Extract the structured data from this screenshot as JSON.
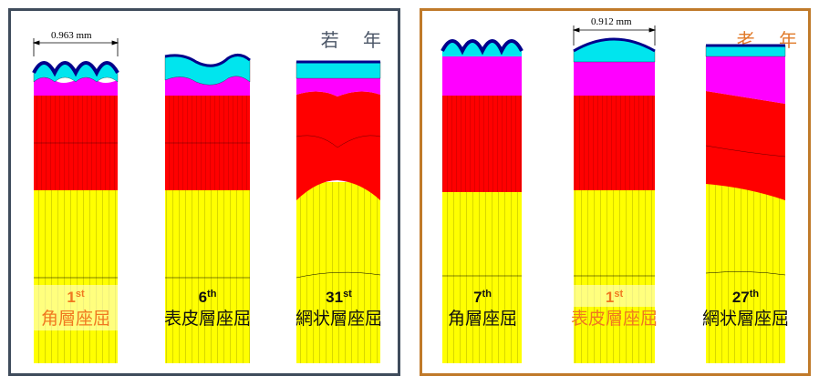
{
  "panels": {
    "young": {
      "title": "若 年",
      "dimension": "0.963 mm",
      "columns": [
        {
          "ordinal": "1",
          "suffix": "st",
          "label": "角層座屈",
          "emphasis": true
        },
        {
          "ordinal": "6",
          "suffix": "th",
          "label": "表皮層座屈",
          "emphasis": false
        },
        {
          "ordinal": "31",
          "suffix": "st",
          "label": "網状層座屈",
          "emphasis": false
        }
      ]
    },
    "old": {
      "title": "老 年",
      "dimension": "0.912 mm",
      "columns": [
        {
          "ordinal": "7",
          "suffix": "th",
          "label": "角層座屈",
          "emphasis": false
        },
        {
          "ordinal": "1",
          "suffix": "st",
          "label": "表皮層座屈",
          "emphasis": true
        },
        {
          "ordinal": "27",
          "suffix": "th",
          "label": "網状層座屈",
          "emphasis": false
        }
      ]
    }
  },
  "colors": {
    "stratum_corneum": "#00008b",
    "epidermis": "#00e5ee",
    "papillary": "#ff00ff",
    "reticular_dermis": "#ff0000",
    "hypodermis": "#ffff00",
    "young_border": "#3f4c5c",
    "old_border": "#c07a2a",
    "emphasis_text": "#f07820"
  }
}
